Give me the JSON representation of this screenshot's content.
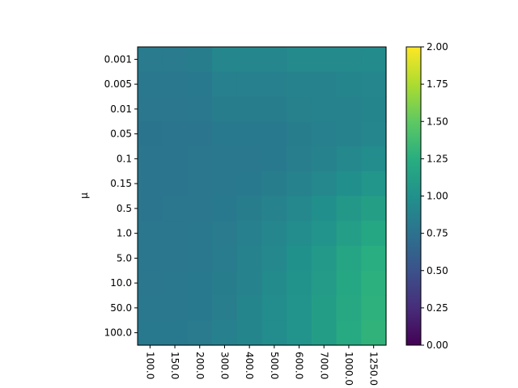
{
  "chart_data": {
    "type": "heatmap",
    "title": "",
    "xlabel": "",
    "ylabel": "μ",
    "x_categories": [
      "100.0",
      "150.0",
      "200.0",
      "300.0",
      "400.0",
      "500.0",
      "600.0",
      "700.0",
      "1000.0",
      "1250.0"
    ],
    "y_categories": [
      "0.001",
      "0.005",
      "0.01",
      "0.05",
      "0.1",
      "0.15",
      "0.5",
      "1.0",
      "5.0",
      "10.0",
      "50.0",
      "100.0"
    ],
    "values": [
      [
        0.82,
        0.82,
        0.84,
        0.92,
        0.92,
        0.91,
        0.94,
        0.94,
        0.94,
        0.95
      ],
      [
        0.8,
        0.8,
        0.81,
        0.86,
        0.86,
        0.86,
        0.89,
        0.89,
        0.9,
        0.91
      ],
      [
        0.79,
        0.79,
        0.8,
        0.84,
        0.84,
        0.84,
        0.87,
        0.88,
        0.89,
        0.9
      ],
      [
        0.77,
        0.78,
        0.78,
        0.81,
        0.81,
        0.81,
        0.84,
        0.86,
        0.89,
        0.92
      ],
      [
        0.78,
        0.78,
        0.79,
        0.8,
        0.8,
        0.81,
        0.85,
        0.88,
        0.93,
        0.97
      ],
      [
        0.78,
        0.78,
        0.79,
        0.8,
        0.81,
        0.84,
        0.88,
        0.93,
        0.99,
        1.04
      ],
      [
        0.78,
        0.79,
        0.79,
        0.81,
        0.84,
        0.88,
        0.93,
        0.99,
        1.06,
        1.12
      ],
      [
        0.79,
        0.79,
        0.8,
        0.82,
        0.86,
        0.91,
        0.97,
        1.03,
        1.11,
        1.19
      ],
      [
        0.79,
        0.79,
        0.8,
        0.83,
        0.88,
        0.93,
        1.0,
        1.07,
        1.17,
        1.25
      ],
      [
        0.79,
        0.8,
        0.81,
        0.84,
        0.89,
        0.95,
        1.02,
        1.09,
        1.19,
        1.27
      ],
      [
        0.8,
        0.8,
        0.81,
        0.85,
        0.9,
        0.96,
        1.03,
        1.1,
        1.2,
        1.28
      ],
      [
        0.81,
        0.81,
        0.82,
        0.86,
        0.9,
        0.96,
        1.03,
        1.1,
        1.21,
        1.29
      ]
    ],
    "colormap": "viridis",
    "vmin": 0.0,
    "vmax": 2.0,
    "colorbar_ticks": [
      "0.00",
      "0.25",
      "0.50",
      "0.75",
      "1.00",
      "1.25",
      "1.50",
      "1.75",
      "2.00"
    ],
    "x_tick_rotation": "-90",
    "grid": false,
    "legend": "colorbar-right"
  }
}
